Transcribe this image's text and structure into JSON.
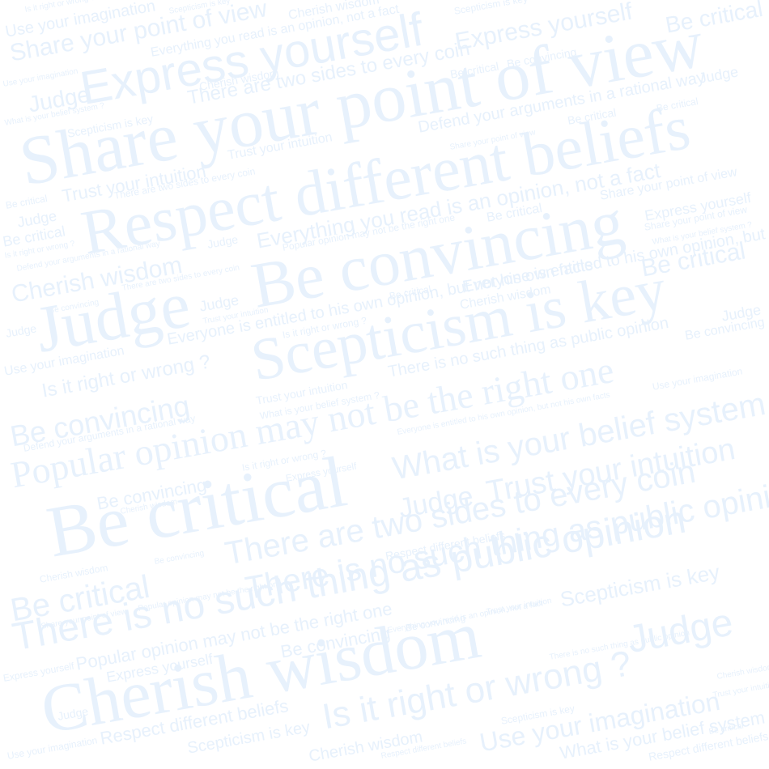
{
  "colors": {
    "background": "#ffffff",
    "text": "#e7f1fc",
    "text_faint": "#eef5fd"
  },
  "words": [
    "Share your point of view",
    "Respect different beliefs",
    "Be convincing",
    "Scepticism is key",
    "Be critical",
    "Cherish wisdom",
    "Express yourself",
    "Judge",
    "Popular opinion may not be the right one",
    "There is no such thing as public opinion",
    "There are two sides to every coin",
    "Is it right or wrong ?",
    "Use your imagination",
    "What is your belief system ?",
    "Trust your intuition",
    "Everything you read is an opinion, not a fact",
    "Defend your arguments in a rational way",
    "Everyone is entitled to his own opinion, but not his own facts"
  ]
}
